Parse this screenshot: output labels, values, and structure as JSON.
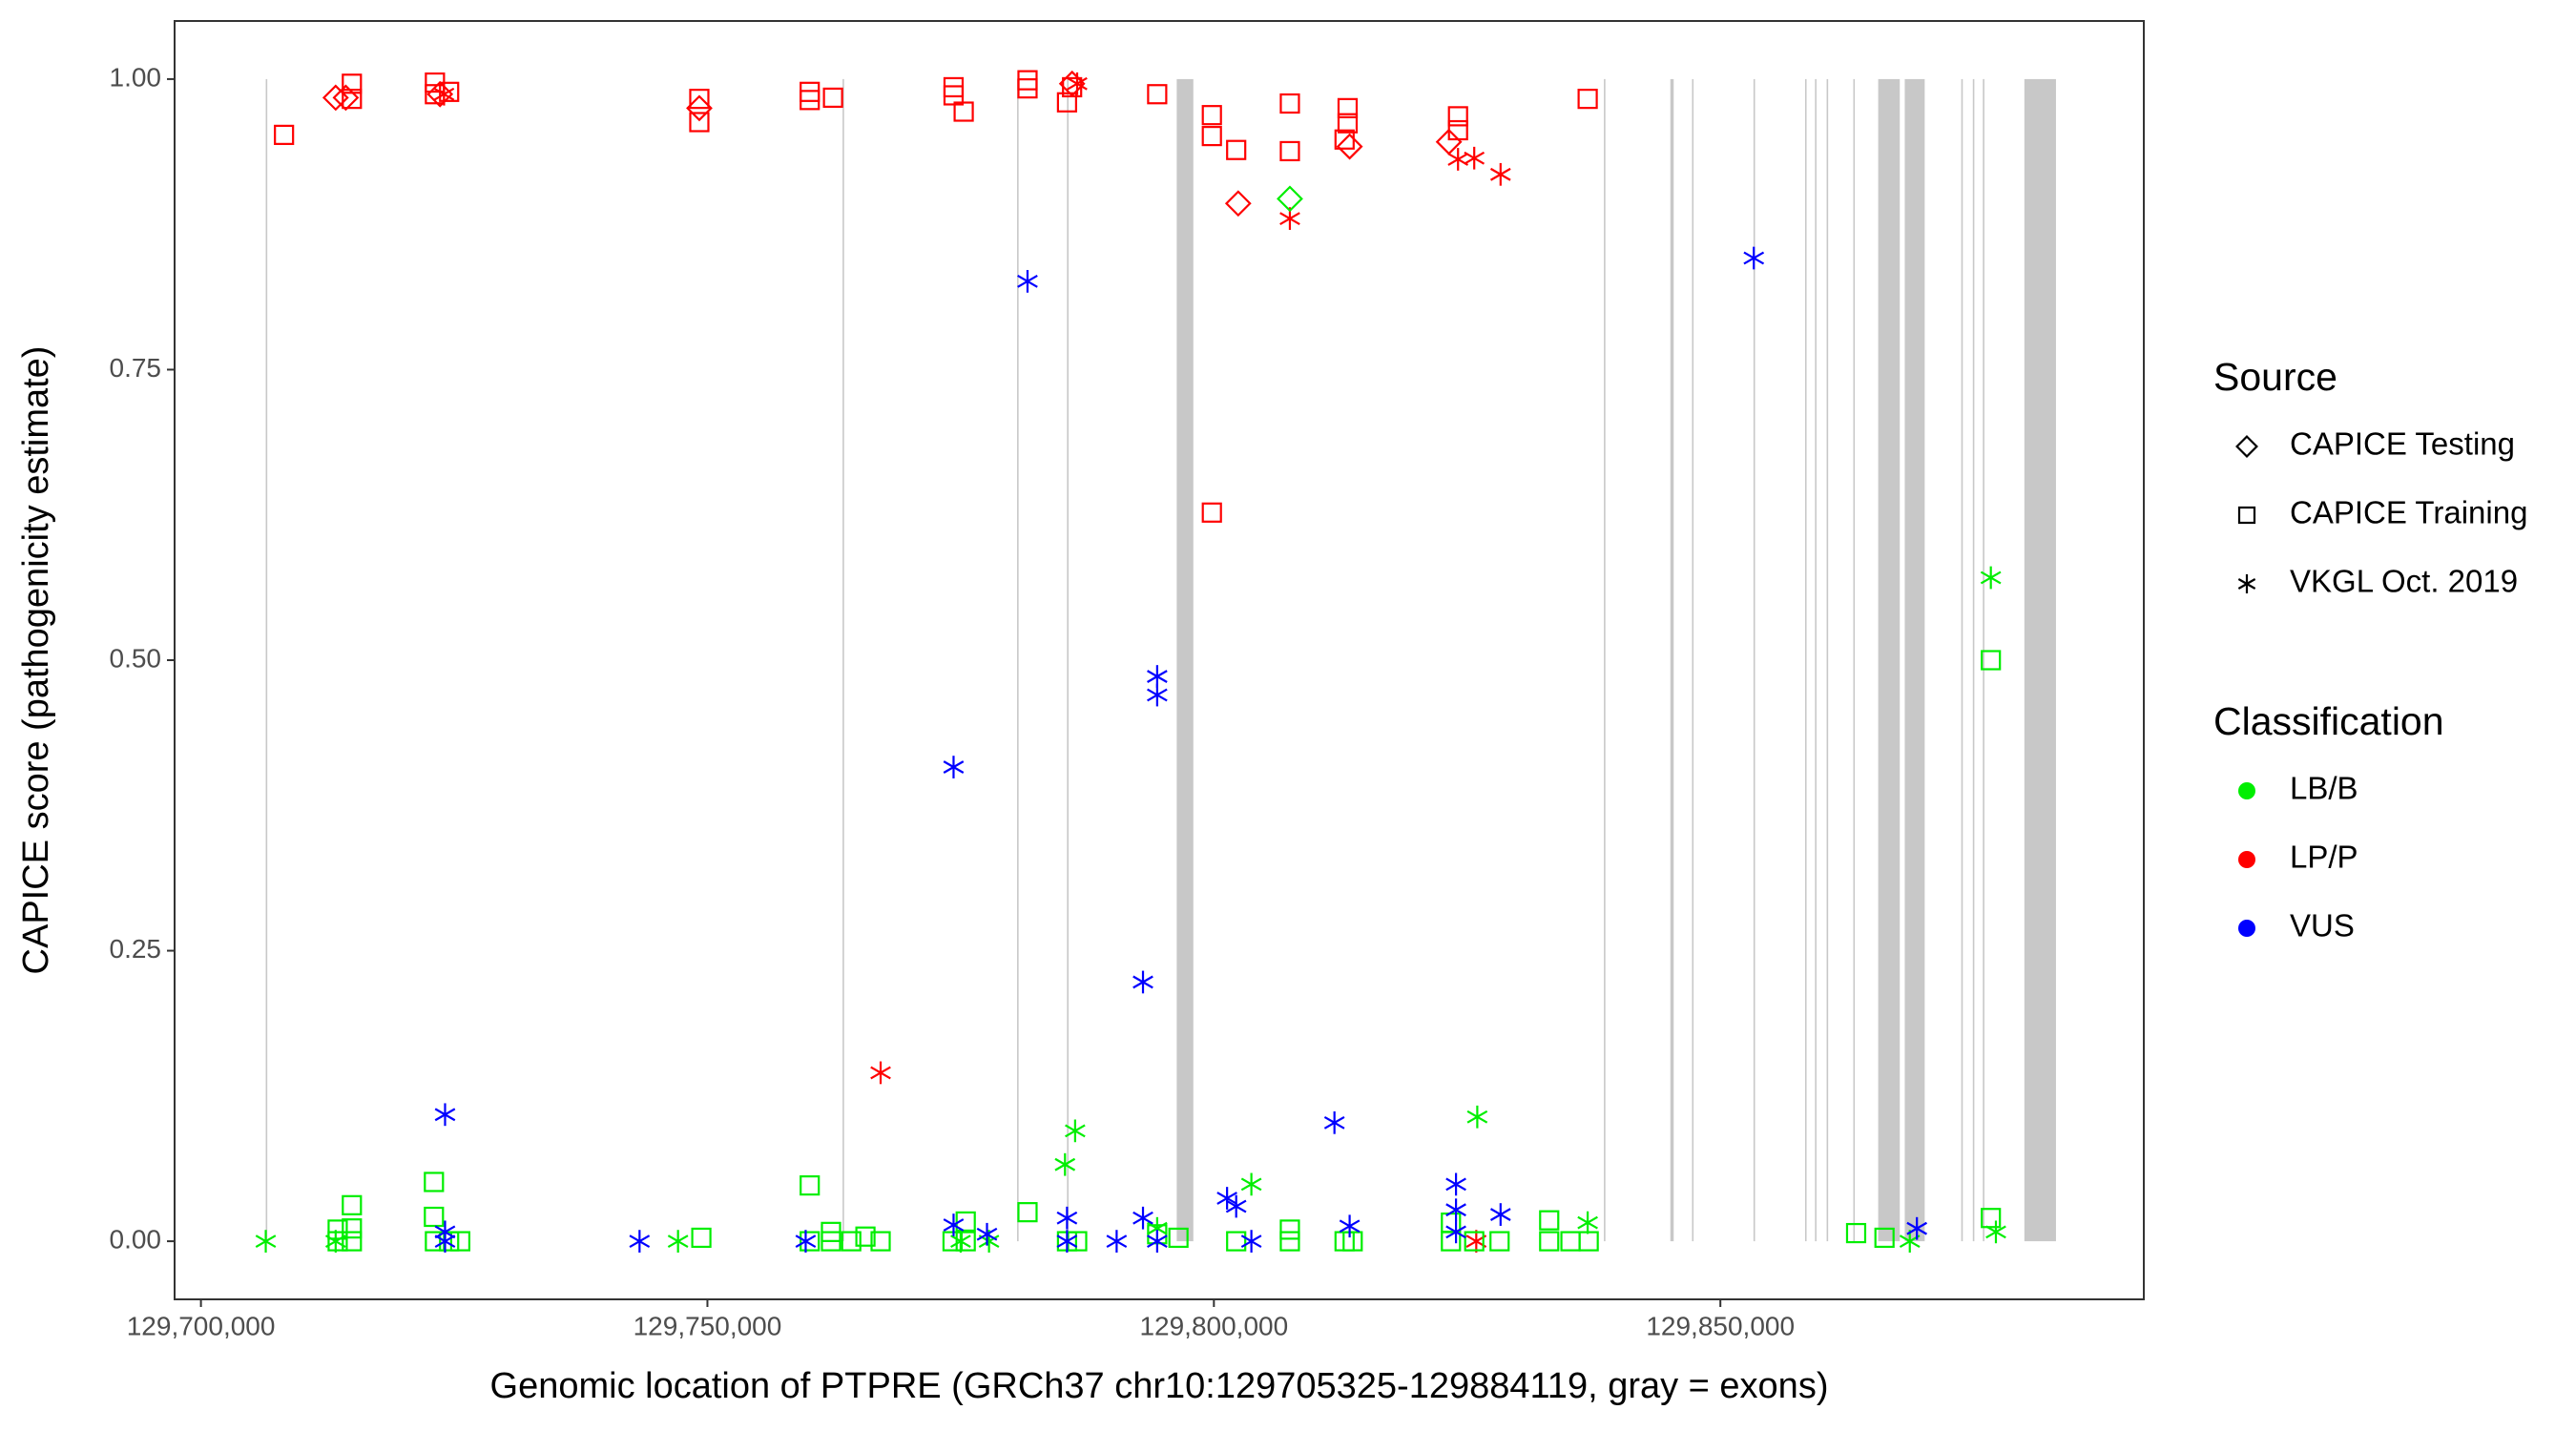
{
  "chart_data": {
    "type": "scatter",
    "x_label": "Genomic location of PTPRE (GRCh37 chr10:129705325-129884119, gray = exons)",
    "y_label": "CAPICE score (pathogenicity estimate)",
    "xlim": [
      129697400,
      129891800
    ],
    "ylim": [
      -0.05,
      1.05
    ],
    "xticks": [
      {
        "value": 129700000,
        "label": "129,700,000"
      },
      {
        "value": 129750000,
        "label": "129,750,000"
      },
      {
        "value": 129800000,
        "label": "129,800,000"
      },
      {
        "value": 129850000,
        "label": "129,850,000"
      }
    ],
    "yticks": [
      {
        "value": 0,
        "label": "0.00"
      },
      {
        "value": 0.25,
        "label": "0.25"
      },
      {
        "value": 0.5,
        "label": "0.50"
      },
      {
        "value": 0.75,
        "label": "0.75"
      },
      {
        "value": 1,
        "label": "1.00"
      }
    ],
    "exon_color": "#c8c8c8",
    "exons": [
      {
        "start": 129706400,
        "end": 129706550
      },
      {
        "start": 129763340,
        "end": 129763490
      },
      {
        "start": 129780570,
        "end": 129780720
      },
      {
        "start": 129785500,
        "end": 129785650
      },
      {
        "start": 129796330,
        "end": 129797970
      },
      {
        "start": 129838500,
        "end": 129838650
      },
      {
        "start": 129845060,
        "end": 129845390
      },
      {
        "start": 129847200,
        "end": 129847350
      },
      {
        "start": 129853270,
        "end": 129853420
      },
      {
        "start": 129858360,
        "end": 129858510
      },
      {
        "start": 129859340,
        "end": 129859490
      },
      {
        "start": 129860490,
        "end": 129860640
      },
      {
        "start": 129863120,
        "end": 129863270
      },
      {
        "start": 129865580,
        "end": 129867710
      },
      {
        "start": 129868200,
        "end": 129870170
      },
      {
        "start": 129873780,
        "end": 129873930
      },
      {
        "start": 129874920,
        "end": 129875070
      },
      {
        "start": 129875910,
        "end": 129876060
      },
      {
        "start": 129880010,
        "end": 129883130
      }
    ],
    "legend": [
      {
        "title": "Source",
        "items": [
          {
            "label": "CAPICE Testing",
            "shape": "diamond"
          },
          {
            "label": "CAPICE Training",
            "shape": "square"
          },
          {
            "label": "VKGL Oct. 2019",
            "shape": "asterisk"
          }
        ]
      },
      {
        "title": "Classification",
        "items": [
          {
            "label": "LB/B",
            "color": "#00ee00"
          },
          {
            "label": "LP/P",
            "color": "#ff0000"
          },
          {
            "label": "VUS",
            "color": "#0000ff"
          }
        ]
      }
    ],
    "series": [
      {
        "shape": "square",
        "color": "#ff0000",
        "x": [
          129708200,
          129714900,
          129714900,
          129723100,
          129723100,
          129724500,
          129749200,
          129749200,
          129760100,
          129760100,
          129762400,
          129774300,
          129774300,
          129775300,
          129781600,
          129781600,
          129785500,
          129786000,
          129794400,
          129799800,
          129799800,
          129799800,
          129802200,
          129807500,
          129807500,
          129812900,
          129813200,
          129813200,
          129824100,
          129824100,
          129836900
        ],
        "y": [
          0.952,
          0.996,
          0.983,
          0.997,
          0.987,
          0.989,
          0.983,
          0.963,
          0.989,
          0.982,
          0.984,
          0.993,
          0.986,
          0.972,
          0.999,
          0.992,
          0.98,
          0.993,
          0.987,
          0.969,
          0.951,
          0.627,
          0.939,
          0.979,
          0.938,
          0.948,
          0.975,
          0.962,
          0.968,
          0.956,
          0.983
        ]
      },
      {
        "shape": "diamond",
        "color": "#ff0000",
        "x": [
          129713300,
          129714300,
          129723600,
          129749200,
          129786000,
          129802400,
          129813400,
          129823200
        ],
        "y": [
          0.984,
          0.984,
          0.987,
          0.975,
          0.996,
          0.893,
          0.942,
          0.946
        ]
      },
      {
        "shape": "asterisk",
        "color": "#ff0000",
        "x": [
          129724000,
          129767100,
          129807500,
          129824100,
          129825700,
          129828300,
          129825900,
          129786500
        ],
        "y": [
          0.987,
          0.145,
          0.88,
          0.931,
          0.932,
          0.918,
          0,
          0.996
        ]
      },
      {
        "shape": "square",
        "color": "#00ee00",
        "x": [
          129723000,
          129723000,
          129714900,
          129713500,
          129714900,
          129713500,
          129714900,
          129723100,
          129724500,
          129725600,
          129749400,
          129760100,
          129760100,
          129762200,
          129762200,
          129764200,
          129765600,
          129767100,
          129775500,
          129775500,
          129774200,
          129781600,
          129785500,
          129786500,
          129794400,
          129796500,
          129802200,
          129807500,
          129807500,
          129812900,
          129813700,
          129823400,
          129823400,
          129825700,
          129828200,
          129833100,
          129833100,
          129835200,
          129837000,
          129863400,
          129866200,
          129876700,
          129876700
        ],
        "y": [
          0.051,
          0.021,
          0.031,
          0.01,
          0.011,
          0,
          0,
          0,
          0,
          0,
          0.003,
          0.048,
          0,
          0.008,
          0,
          0,
          0.004,
          0,
          0.017,
          0,
          0,
          0.025,
          0,
          0,
          0.006,
          0.003,
          0,
          0.01,
          0,
          0,
          0,
          0.016,
          0,
          0,
          0,
          0.018,
          0,
          0,
          0,
          0.007,
          0.003,
          0.02,
          0.5
        ]
      },
      {
        "shape": "diamond",
        "color": "#00ee00",
        "x": [
          129807500
        ],
        "y": [
          0.897
        ]
      },
      {
        "shape": "asterisk",
        "color": "#00ee00",
        "x": [
          129706400,
          129713300,
          129747100,
          129785300,
          129786300,
          129803700,
          129826000,
          129836900,
          129868700,
          129876700,
          129877200,
          129794400,
          129775000,
          129777800
        ],
        "y": [
          0,
          0,
          0,
          0.066,
          0.095,
          0.049,
          0.107,
          0.016,
          0,
          0.571,
          0.008,
          0.011,
          0,
          0
        ]
      },
      {
        "shape": "asterisk",
        "color": "#0000ff",
        "x": [
          129724100,
          129724100,
          129724100,
          129743300,
          129759700,
          129774300,
          129774300,
          129777600,
          129781600,
          129785500,
          129785500,
          129790400,
          129793000,
          129793000,
          129794400,
          129794400,
          129794400,
          129801300,
          129802200,
          129803700,
          129811900,
          129813400,
          129823900,
          129823900,
          129823900,
          129828300,
          129853300,
          129869400
        ],
        "y": [
          0.109,
          0.008,
          0,
          0,
          0,
          0.014,
          0.408,
          0.006,
          0.826,
          0.02,
          0,
          0,
          0.223,
          0.02,
          0.486,
          0.47,
          0,
          0.037,
          0.03,
          0,
          0.102,
          0.013,
          0.049,
          0.027,
          0.008,
          0.023,
          0.846,
          0.011
        ]
      }
    ]
  }
}
